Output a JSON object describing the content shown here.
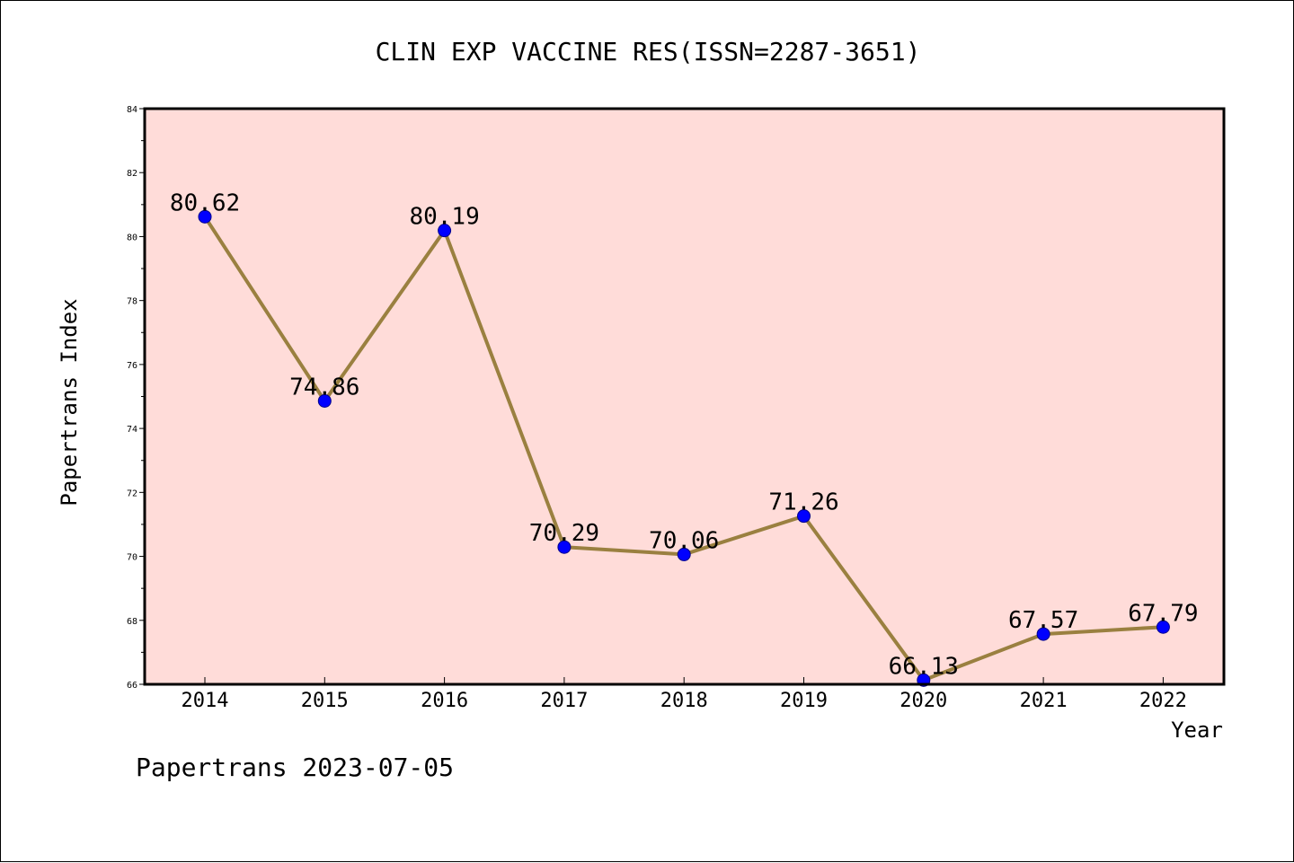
{
  "chart_data": {
    "type": "line",
    "title": "CLIN EXP VACCINE RES(ISSN=2287-3651)",
    "xlabel": "Year",
    "ylabel": "Papertrans Index",
    "categories": [
      "2014",
      "2015",
      "2016",
      "2017",
      "2018",
      "2019",
      "2020",
      "2021",
      "2022"
    ],
    "values": [
      80.62,
      74.86,
      80.19,
      70.29,
      70.06,
      71.26,
      66.13,
      67.57,
      67.79
    ],
    "data_labels": [
      "80.62",
      "74.86",
      "80.19",
      "70.29",
      "70.06",
      "71.26",
      "66.13",
      "67.57",
      "67.79"
    ],
    "ylim": [
      66,
      84
    ],
    "yticks": [
      "66",
      "68",
      "70",
      "72",
      "74",
      "76",
      "78",
      "80",
      "82",
      "84"
    ],
    "grid": false,
    "colors": {
      "plot_background": "#ffdcd9",
      "line": "#9a8040",
      "marker": "#0000ff",
      "marker_edge": "#00008b"
    }
  },
  "footer": "Papertrans 2023-07-05"
}
